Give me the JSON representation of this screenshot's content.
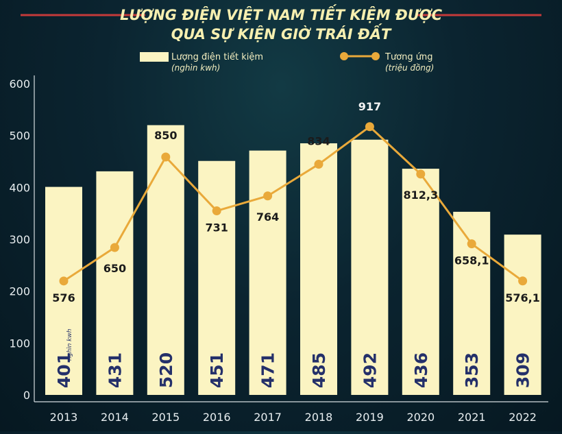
{
  "chart_data": {
    "type": "bar",
    "title": "LƯỢNG ĐIỆN VIỆT NAM TIẾT KIỆM ĐƯỢC",
    "subtitle": "QUA SỰ KIỆN GIỜ TRÁI ĐẤT",
    "categories": [
      "2013",
      "2014",
      "2015",
      "2016",
      "2017",
      "2018",
      "2019",
      "2020",
      "2021",
      "2022"
    ],
    "ylim": [
      0,
      600
    ],
    "yticks": [
      "0",
      "100",
      "200",
      "300",
      "400",
      "500",
      "600"
    ],
    "grid": false,
    "legend_position": "top",
    "bar_unit_note": "nghìn kwh",
    "bar_series": {
      "name": "Lượng điện tiết kiệm",
      "unit": "(nghìn kwh)",
      "values": [
        401,
        431,
        520,
        451,
        471,
        485,
        492,
        436,
        353,
        309
      ],
      "labels": [
        "401",
        "431",
        "520",
        "451",
        "471",
        "485",
        "492",
        "436",
        "353",
        "309"
      ],
      "color": "#fbf4c2"
    },
    "line_series": {
      "name": "Tương ứng",
      "unit": "(triệu đồng)",
      "values": [
        576,
        650,
        850,
        731,
        764,
        834,
        917,
        812.3,
        658.1,
        576.1
      ],
      "labels": [
        "576",
        "650",
        "850",
        "731",
        "764",
        "834",
        "917",
        "812,3",
        "658,1",
        "576,1"
      ],
      "color": "#e9a93a"
    }
  }
}
